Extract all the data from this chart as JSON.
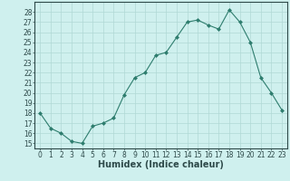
{
  "x": [
    0,
    1,
    2,
    3,
    4,
    5,
    6,
    7,
    8,
    9,
    10,
    11,
    12,
    13,
    14,
    15,
    16,
    17,
    18,
    19,
    20,
    21,
    22,
    23
  ],
  "y": [
    18,
    16.5,
    16,
    15.2,
    15,
    16.7,
    17,
    17.5,
    19.8,
    21.5,
    22,
    23.7,
    24,
    25.5,
    27,
    27.2,
    26.7,
    26.3,
    28.2,
    27,
    25,
    21.5,
    20,
    18.3
  ],
  "line_color": "#2e7d6e",
  "marker": "D",
  "marker_size": 2.0,
  "bg_color": "#cff0ee",
  "grid_color": "#b0d8d5",
  "xlabel": "Humidex (Indice chaleur)",
  "ylim": [
    14.5,
    29
  ],
  "xlim": [
    -0.5,
    23.5
  ],
  "yticks": [
    15,
    16,
    17,
    18,
    19,
    20,
    21,
    22,
    23,
    24,
    25,
    26,
    27,
    28
  ],
  "xticks": [
    0,
    1,
    2,
    3,
    4,
    5,
    6,
    7,
    8,
    9,
    10,
    11,
    12,
    13,
    14,
    15,
    16,
    17,
    18,
    19,
    20,
    21,
    22,
    23
  ],
  "tick_fontsize": 5.5,
  "xlabel_fontsize": 7.0,
  "label_color": "#2e4a4a"
}
